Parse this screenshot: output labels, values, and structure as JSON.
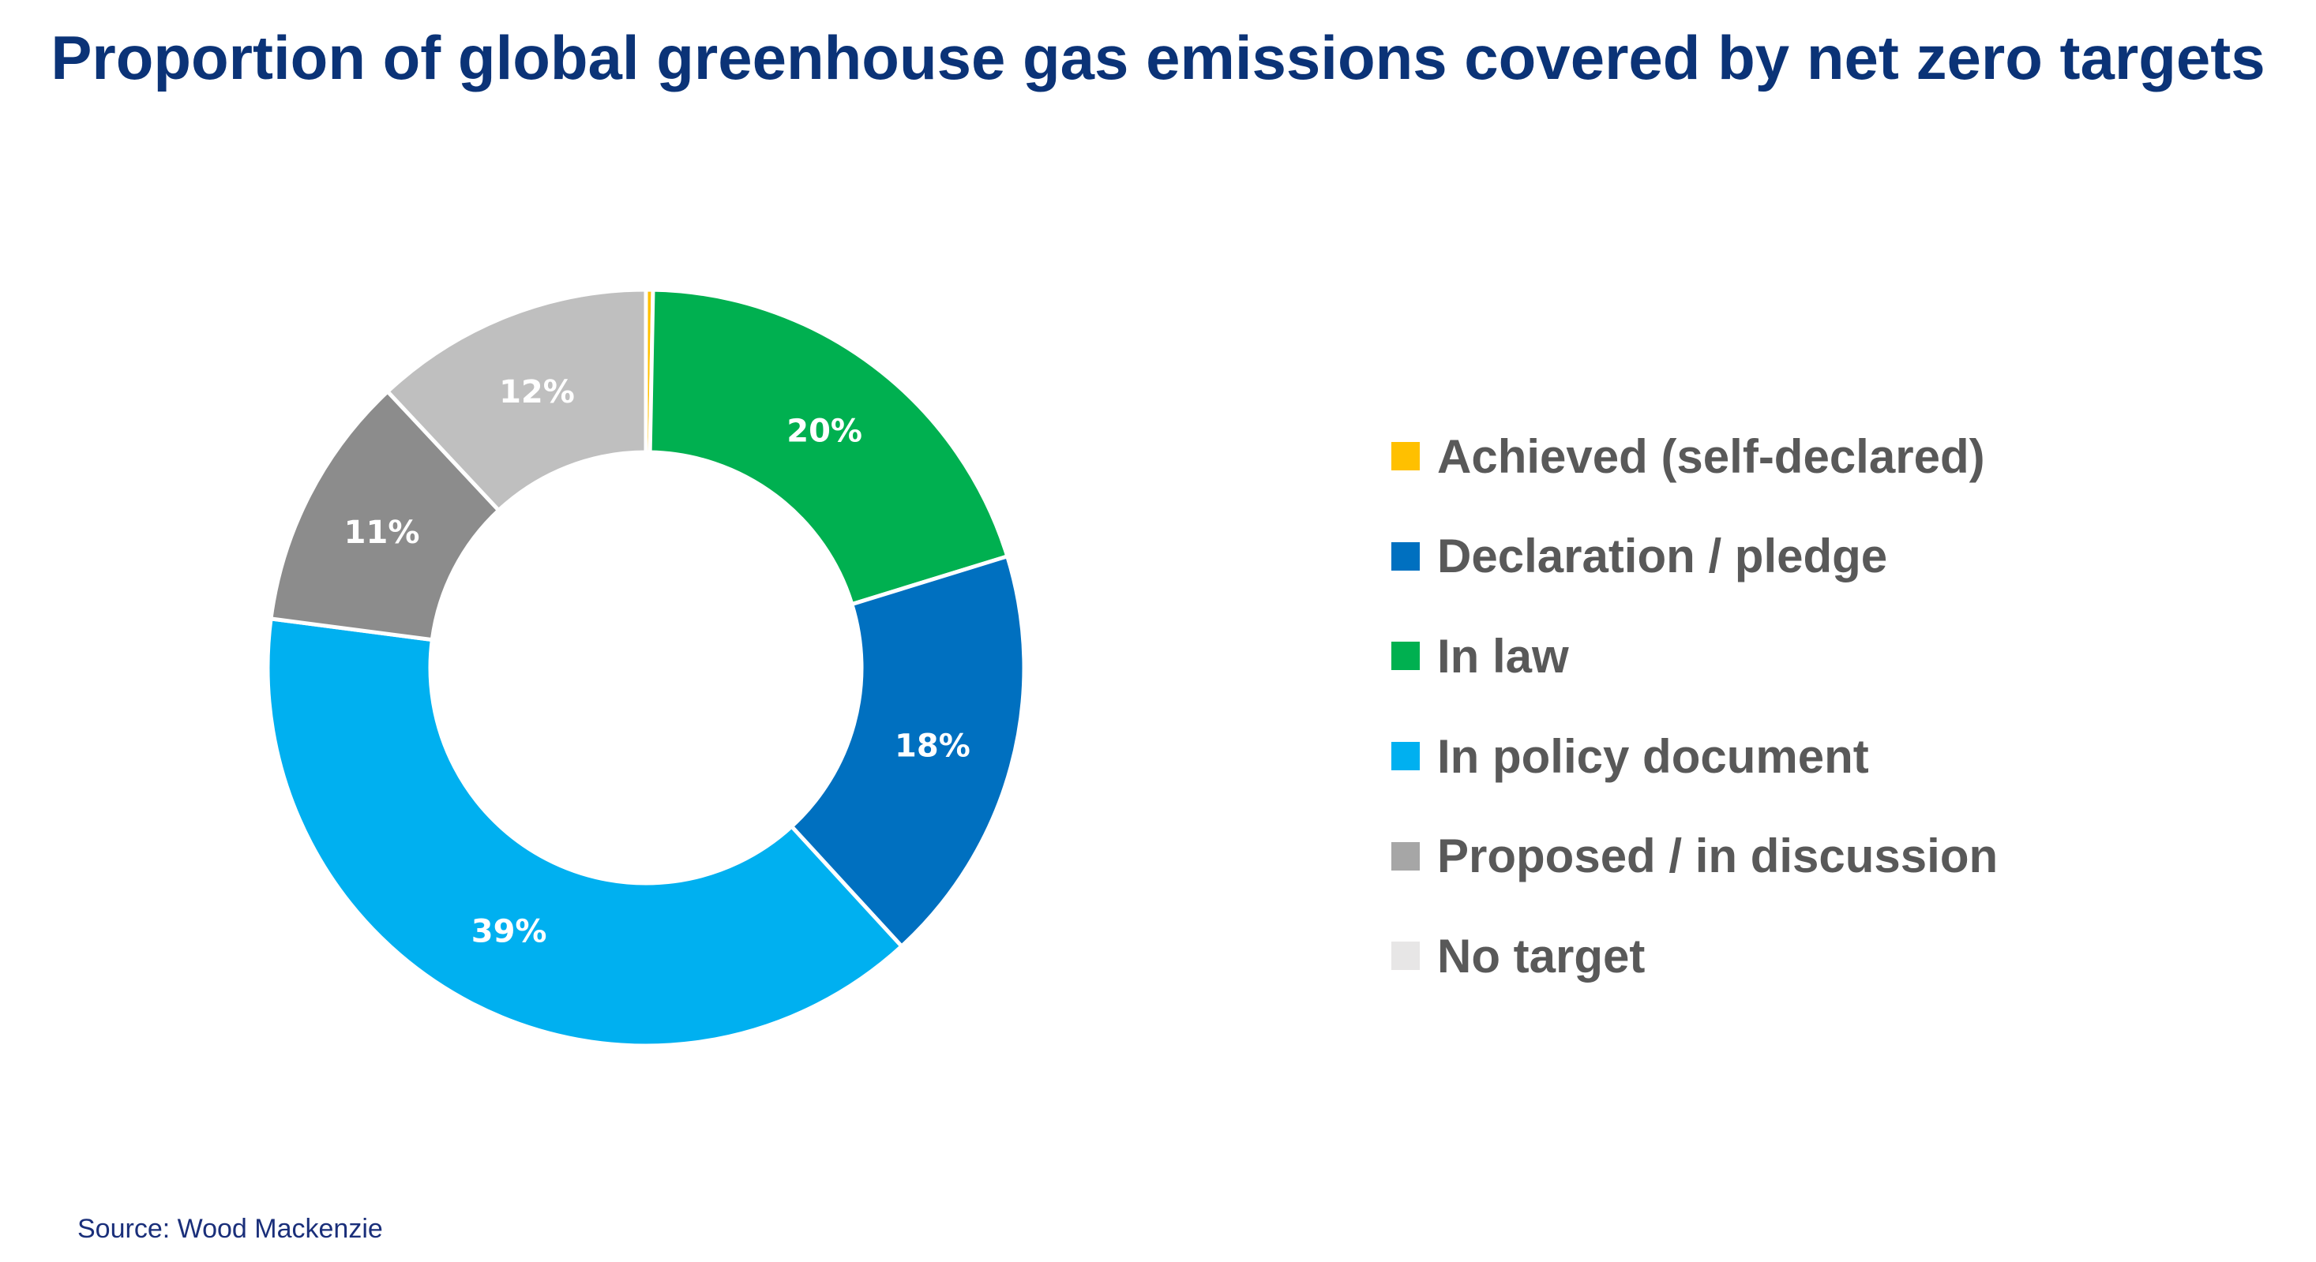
{
  "chart_data": {
    "type": "pie",
    "donut": true,
    "title": "Proportion of global greenhouse gas emissions covered by net zero targets",
    "source": "Source: Wood Mackenzie",
    "legend_position": "right",
    "legend": [
      {
        "label": "Achieved (self-declared)",
        "color": "#ffc000"
      },
      {
        "label": "Declaration / pledge",
        "color": "#0070c0"
      },
      {
        "label": "In law",
        "color": "#00b050"
      },
      {
        "label": "In policy document",
        "color": "#00b0f0"
      },
      {
        "label": "Proposed / in discussion",
        "color": "#a6a6a6"
      },
      {
        "label": "No target",
        "color": "#e7e6e6"
      }
    ],
    "slices": [
      {
        "name": "Achieved (self-declared)",
        "value": 0.3,
        "label": "",
        "color": "#ffc000"
      },
      {
        "name": "In law",
        "value": 20,
        "label": "20%",
        "color": "#00b050"
      },
      {
        "name": "Declaration / pledge",
        "value": 18,
        "label": "18%",
        "color": "#0070c0"
      },
      {
        "name": "In policy document",
        "value": 39,
        "label": "39%",
        "color": "#00b0f0"
      },
      {
        "name": "Proposed / in discussion",
        "value": 11,
        "label": "11%",
        "color": "#8c8c8c"
      },
      {
        "name": "No target",
        "value": 12,
        "label": "12%",
        "color": "#bfbfbf"
      }
    ]
  }
}
